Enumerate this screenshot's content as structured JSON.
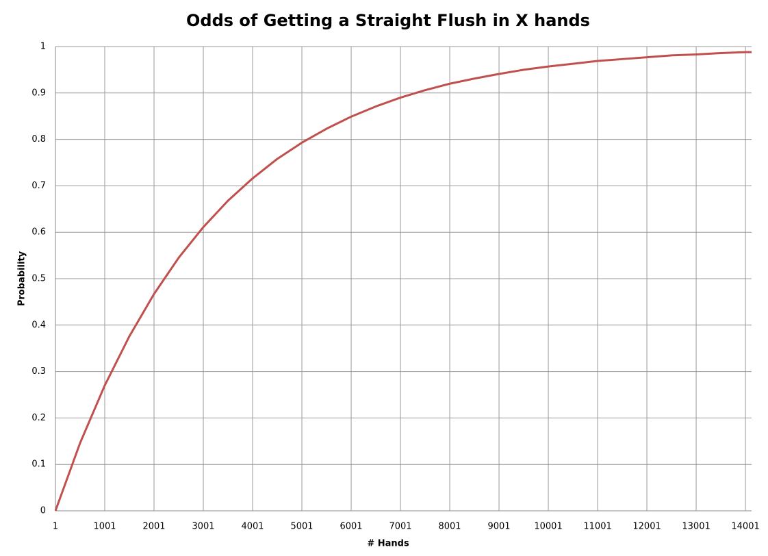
{
  "chart_data": {
    "type": "line",
    "title": "Odds of Getting a Straight Flush in X hands",
    "x_label": "# Hands",
    "y_label": "Probability",
    "x": [
      1,
      501,
      1001,
      1501,
      2001,
      2501,
      3001,
      3501,
      4001,
      4501,
      5001,
      5501,
      6001,
      6501,
      7001,
      7501,
      8001,
      8501,
      9001,
      9501,
      10001,
      10501,
      11001,
      11501,
      12001,
      12501,
      13001,
      13501,
      14001,
      14125
    ],
    "series": [
      {
        "name": "Probability",
        "color": "#c0504d",
        "values": [
          0,
          0.146,
          0.27,
          0.376,
          0.467,
          0.545,
          0.611,
          0.668,
          0.716,
          0.758,
          0.793,
          0.823,
          0.849,
          0.871,
          0.89,
          0.906,
          0.92,
          0.931,
          0.941,
          0.95,
          0.957,
          0.963,
          0.969,
          0.973,
          0.977,
          0.981,
          0.983,
          0.986,
          0.988,
          0.988
        ]
      }
    ],
    "xlim": [
      1,
      14125
    ],
    "xticks": [
      1,
      1001,
      2001,
      3001,
      4001,
      5001,
      6001,
      7001,
      8001,
      9001,
      10001,
      11001,
      12001,
      13001,
      14001
    ],
    "ylim": [
      0,
      1
    ],
    "yticks": [
      0,
      0.1,
      0.2,
      0.3,
      0.4,
      0.5,
      0.6,
      0.7,
      0.8,
      0.9,
      1
    ],
    "grid": true
  }
}
